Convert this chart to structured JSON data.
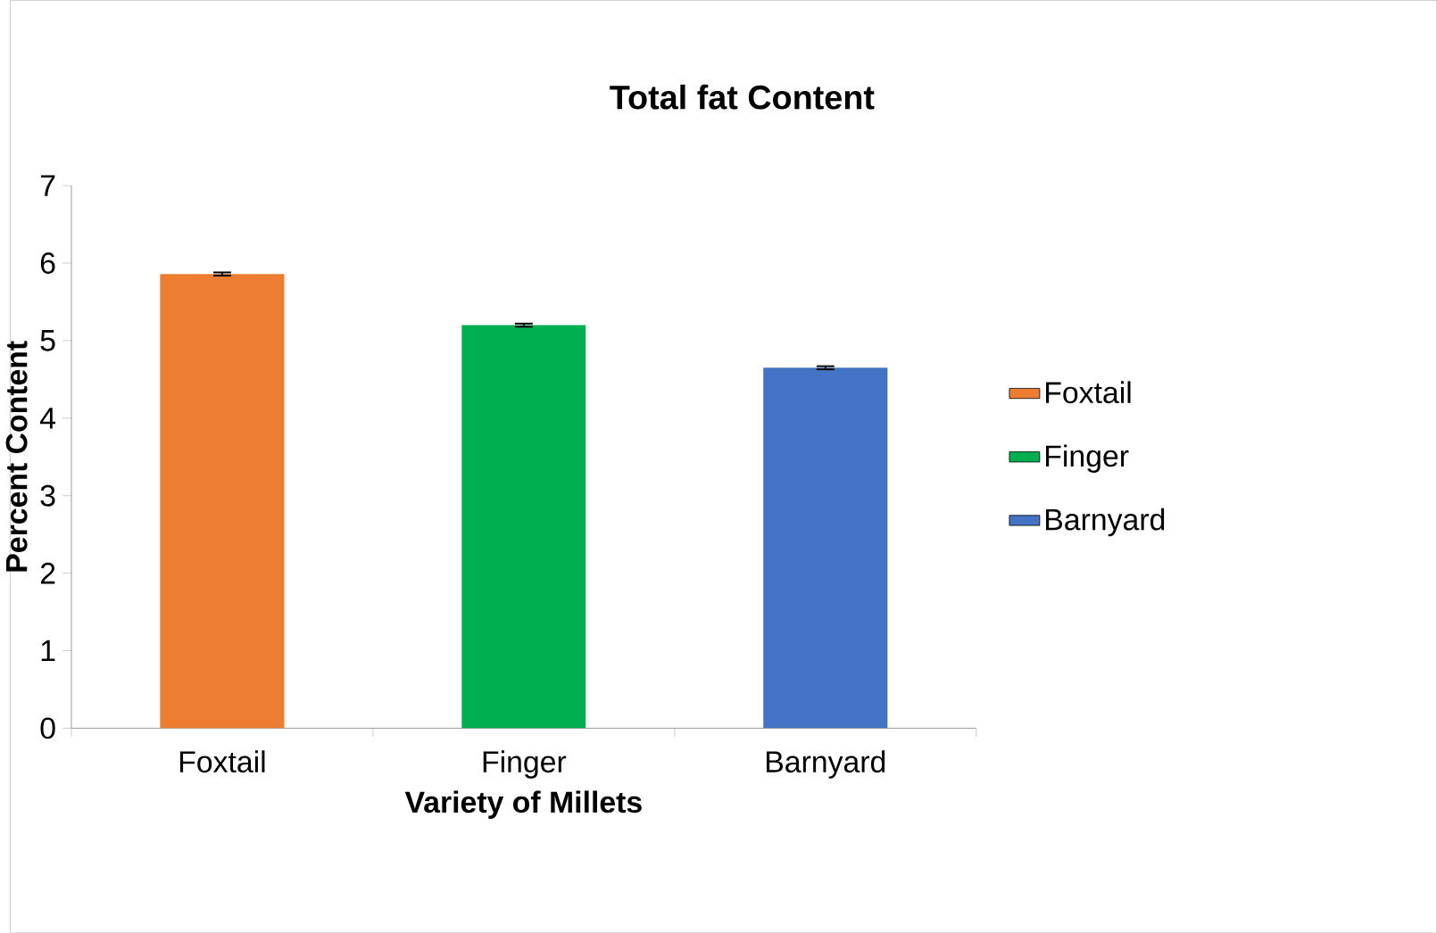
{
  "chart_data": {
    "type": "bar",
    "title": "Total fat Content",
    "xlabel": "Variety of Millets",
    "ylabel": "Percent Content",
    "categories": [
      "Foxtail",
      "Finger",
      "Barnyard"
    ],
    "series": [
      {
        "name": "Foxtail",
        "color": "#ed7d31",
        "values": [
          5.86,
          null,
          null
        ],
        "errors": [
          0.02,
          null,
          null
        ]
      },
      {
        "name": "Finger",
        "color": "#00b050",
        "values": [
          null,
          5.2,
          null
        ],
        "errors": [
          null,
          0.02,
          null
        ]
      },
      {
        "name": "Barnyard",
        "color": "#4472c4",
        "values": [
          null,
          null,
          4.65
        ],
        "errors": [
          null,
          null,
          0.02
        ]
      }
    ],
    "ylim": [
      0,
      7
    ],
    "yticks": [
      0,
      1,
      2,
      3,
      4,
      5,
      6,
      7
    ],
    "legend": "right"
  }
}
